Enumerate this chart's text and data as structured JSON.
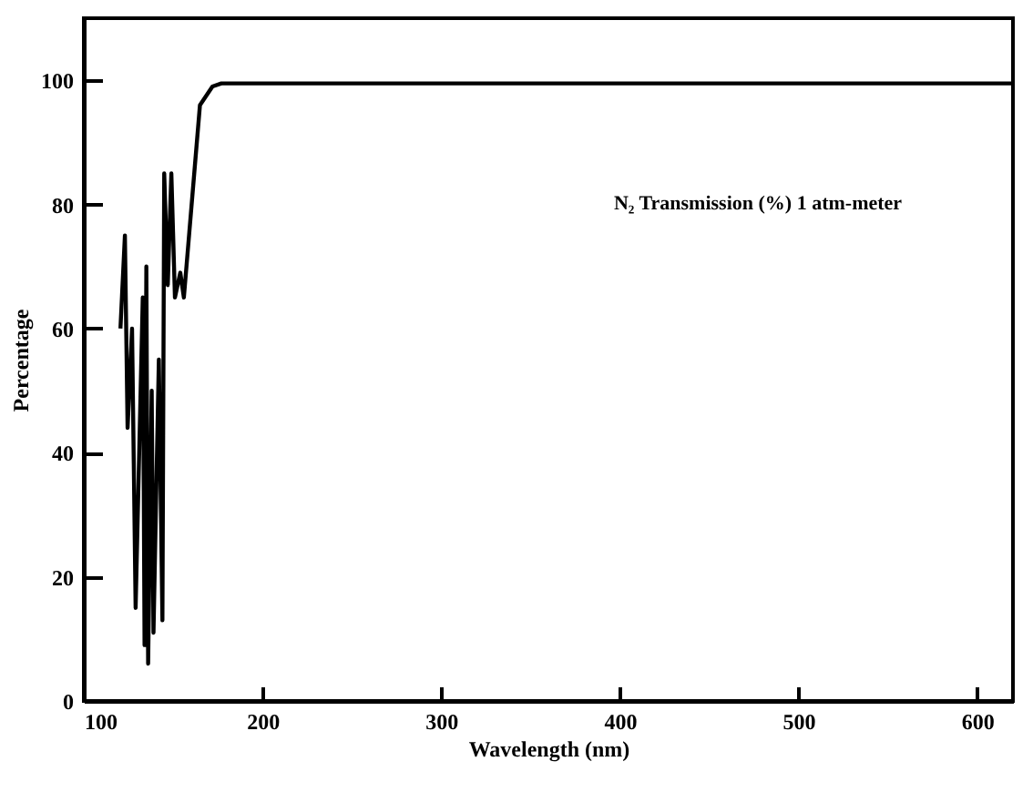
{
  "chart_data": {
    "type": "line",
    "xlabel": "Wavelength (nm)",
    "ylabel": "Percentage",
    "annotations": [
      "N₂ Transmission (%) 1 atm-meter"
    ],
    "x": [
      120.5,
      123,
      124.5,
      127,
      129,
      133,
      134,
      135,
      136,
      138,
      139,
      142,
      144,
      145,
      147,
      149,
      151,
      154,
      156,
      165,
      172,
      177,
      200,
      300,
      400,
      500,
      620
    ],
    "series": [
      {
        "color": "#000000",
        "values": [
          60,
          75,
          44,
          60,
          15,
          65,
          9,
          70,
          6,
          50,
          11,
          55,
          13,
          85,
          67,
          85,
          65,
          69,
          65,
          96,
          99,
          99.5,
          99.5,
          99.5,
          99.5,
          99.5,
          99.5
        ]
      }
    ],
    "xlim": [
      100,
      620
    ],
    "ylim": [
      0,
      110
    ],
    "xticks": [
      100,
      200,
      300,
      400,
      500,
      600
    ],
    "yticks": [
      0,
      20,
      40,
      60,
      80,
      100
    ],
    "grid": false,
    "marker": "none",
    "line_style": "solid"
  }
}
